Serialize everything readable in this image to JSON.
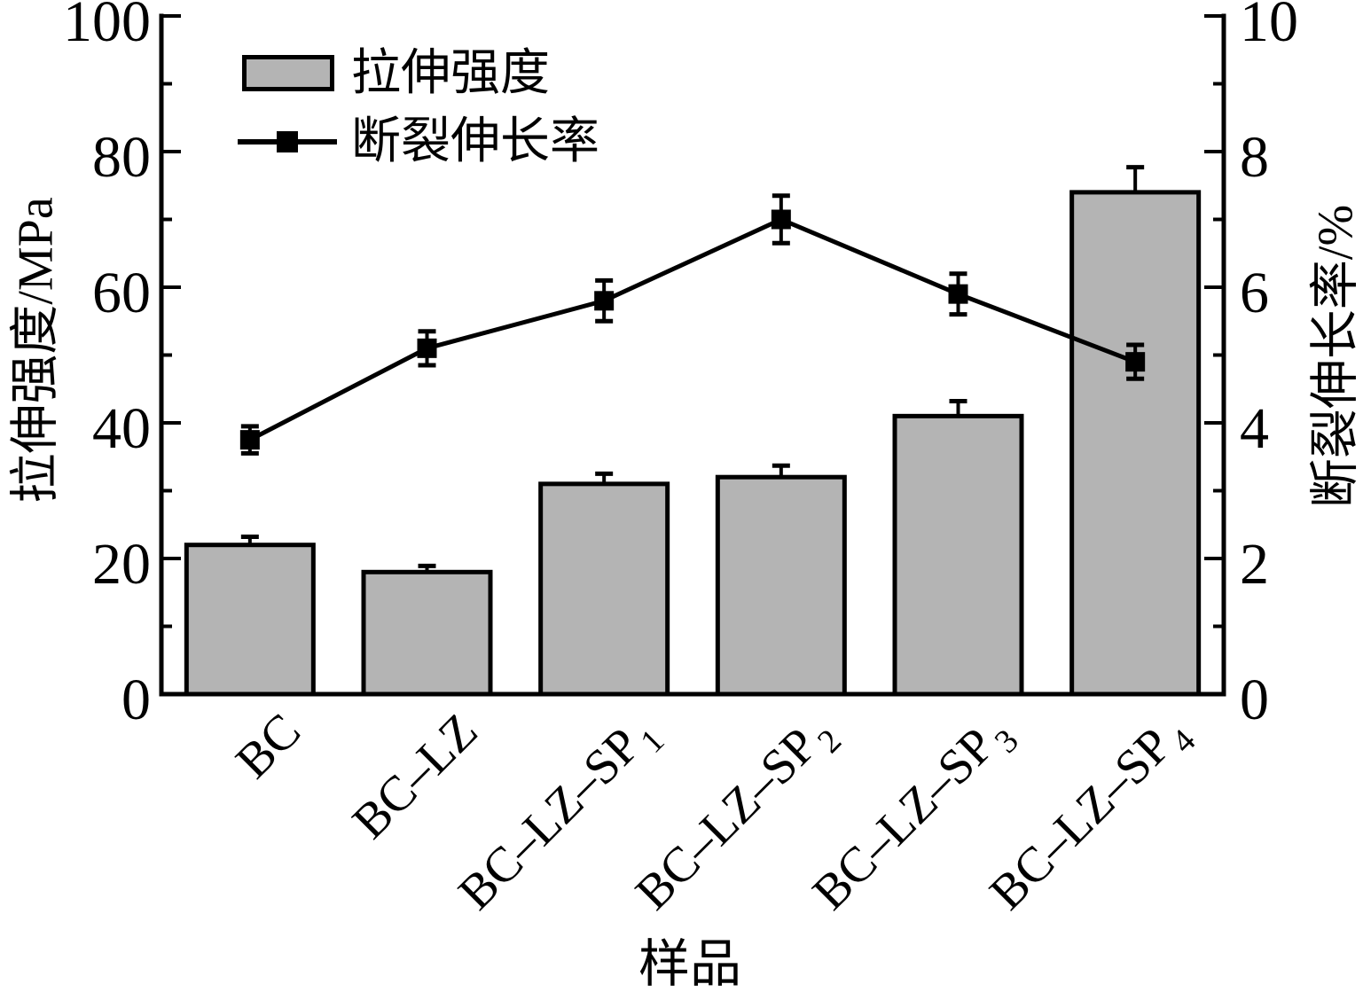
{
  "chart_data": {
    "type": "bar+line",
    "categories": [
      "BC",
      "BC–LZ",
      "BC–LZ–SP₁",
      "BC–LZ–SP₂",
      "BC–LZ–SP₃",
      "BC–LZ–SP₄"
    ],
    "series": [
      {
        "name": "拉伸强度",
        "type": "bar",
        "y_axis": "left",
        "values": [
          22,
          18,
          31,
          32,
          41,
          74
        ],
        "errors": [
          1.2,
          0.9,
          1.5,
          1.7,
          2.2,
          3.7
        ],
        "color": "#b4b4b4",
        "border_color": "#000000"
      },
      {
        "name": "断裂伸长率",
        "type": "line",
        "y_axis": "right",
        "values": [
          3.75,
          5.1,
          5.8,
          7.0,
          5.9,
          4.9
        ],
        "errors": [
          0.2,
          0.25,
          0.3,
          0.35,
          0.3,
          0.25
        ],
        "color": "#000000",
        "marker": "filled-square"
      }
    ],
    "left_axis": {
      "label": "拉伸强度/MPa",
      "min": 0,
      "max": 100,
      "major_tick_step": 20,
      "minor_tick_step": 10,
      "tick_labels": [
        "0",
        "20",
        "40",
        "60",
        "80",
        "100"
      ]
    },
    "right_axis": {
      "label": "断裂伸长率/%",
      "min": 0,
      "max": 10,
      "major_tick_step": 2,
      "minor_tick_step": 1,
      "tick_labels": [
        "0",
        "2",
        "4",
        "6",
        "8",
        "10"
      ]
    },
    "x_axis": {
      "label": "样品"
    },
    "legend": {
      "position": "top-left",
      "entries": [
        "拉伸强度",
        "断裂伸长率"
      ]
    },
    "background": "#ffffff",
    "grid": false
  }
}
